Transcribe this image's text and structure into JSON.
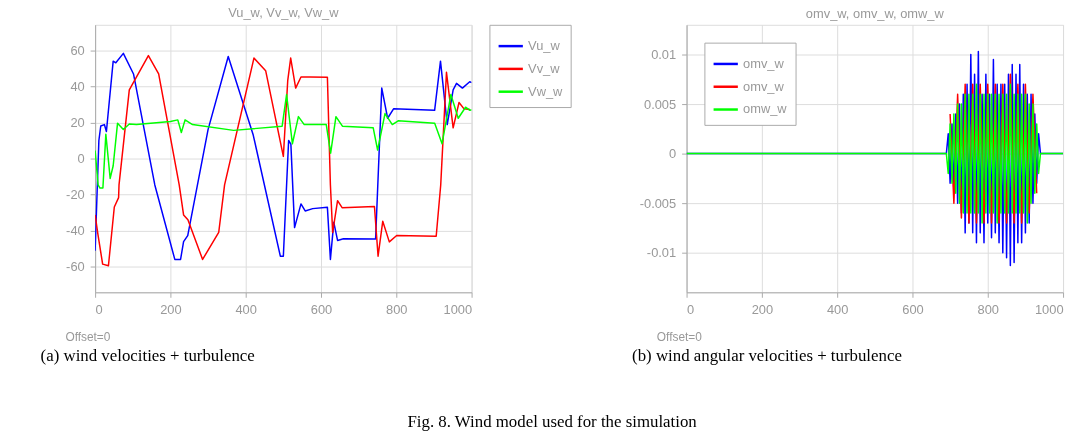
{
  "chart_data": [
    {
      "type": "line",
      "title": "Vu_w, Vv_w, Vw_w",
      "xlim": [
        0,
        1000
      ],
      "xticks": [
        0,
        200,
        400,
        600,
        800,
        1000
      ],
      "ylim": [
        -74,
        74
      ],
      "yticks": [
        -60,
        -40,
        -20,
        0,
        20,
        40,
        60
      ],
      "grid": true,
      "legend": "right",
      "series": [
        {
          "name": "Vu_w",
          "color": "#0000ff",
          "x": [
            0,
            10,
            15,
            24.6,
            30,
            48,
            55,
            75,
            102,
            158.6,
            211.7,
            227,
            235,
            246,
            300,
            353.6,
            420,
            492,
            500,
            514,
            520,
            529.8,
            546.8,
            558,
            578,
            617,
            625,
            634,
            644,
            659.6,
            745,
            761.4,
            777,
            792.7,
            901.8,
            917.4,
            935.3,
            951,
            960,
            975.6,
            995,
            1000
          ],
          "values": [
            -51,
            10,
            18,
            18.8,
            15,
            53.9,
            53,
            58.2,
            46.8,
            -14.6,
            -55.8,
            -55.8,
            -46,
            -42.6,
            16,
            56.5,
            13,
            -54,
            -54,
            10,
            8,
            -38.2,
            -25.1,
            -29,
            -27.7,
            -27,
            -55.8,
            -35.3,
            -45.3,
            -44.4,
            -44.5,
            39,
            22.3,
            27.5,
            26.7,
            53.9,
            18.8,
            38,
            41.6,
            39,
            42.5,
            42
          ]
        },
        {
          "name": "Vv_w",
          "color": "#ff0000",
          "x": [
            0,
            8,
            20,
            35.4,
            51,
            62.4,
            63.5,
            90.8,
            141.5,
            168.8,
            223.4,
            235,
            246.5,
            285.5,
            328.3,
            343.9,
            421.9,
            453,
            500,
            511.7,
            519.5,
            532.7,
            546.8,
            570,
            617,
            625,
            631,
            644,
            656,
            742,
            751.6,
            764,
            781.5,
            801,
            906,
            918,
            933.3,
            951,
            966.6,
            980,
            995.6
          ],
          "values": [
            -31.2,
            -42.6,
            -58.4,
            -59.3,
            -26.8,
            -21.6,
            -14.6,
            38,
            57,
            46.8,
            -14.6,
            -31.2,
            -33.9,
            -55.8,
            -40.9,
            -14.6,
            55.6,
            48.6,
            1.2,
            43.3,
            55.6,
            39,
            45.1,
            45.1,
            45,
            -14.6,
            -40.9,
            -23.3,
            -27.2,
            -26.5,
            -54,
            -34.7,
            -46.1,
            -42.6,
            -43,
            -14.6,
            47.7,
            17,
            31,
            27.5,
            27.2
          ]
        },
        {
          "name": "Vw_w",
          "color": "#00ff00",
          "x": [
            0,
            8,
            12.9,
            20.7,
            28.5,
            40,
            48,
            59.6,
            75,
            90.8,
            110,
            200,
            219.6,
            229,
            239,
            258.7,
            368,
            496.8,
            508.6,
            524,
            540,
            555.5,
            614,
            625.6,
            639.7,
            656.9,
            738.7,
            750.4,
            770,
            789.4,
            805,
            902,
            921.6,
            945,
            964.5,
            984,
            995.6,
            1000
          ],
          "values": [
            4.4,
            -14.6,
            -16.3,
            -16.3,
            13.5,
            -11,
            -4,
            19.6,
            16.1,
            19.1,
            18.8,
            20.5,
            21.4,
            14.4,
            21.4,
            18.8,
            15.6,
            17.9,
            35.4,
            8.2,
            23.2,
            18.8,
            18.8,
            3,
            23.2,
            17.9,
            17,
            4.7,
            24.9,
            18.8,
            20.9,
            19.6,
            8.2,
            35.4,
            22.3,
            28.4,
            26.7,
            27
          ]
        }
      ],
      "annotations": [
        "Offset=0",
        "(a) wind velocities + turbulence",
        "Fig. 8. Wind model used for the simulation"
      ]
    },
    {
      "type": "line",
      "title": "omv_w, omv_w, omw_w",
      "xlim": [
        0,
        1000
      ],
      "xticks": [
        0,
        200,
        400,
        600,
        800,
        1000
      ],
      "ylim": [
        -0.014,
        0.013
      ],
      "yticks": [
        -0.01,
        -0.005,
        0,
        0.005,
        0.01
      ],
      "grid": true,
      "legend": "top left",
      "series": [
        {
          "name": "omv_w",
          "color": "#0000ff",
          "x": [
            0,
            690,
            695,
            700,
            705,
            710,
            715,
            720,
            725,
            730,
            735,
            740,
            745,
            750,
            755,
            760,
            765,
            770,
            775,
            780,
            785,
            790,
            795,
            800,
            805,
            810,
            815,
            820,
            825,
            830,
            835,
            840,
            845,
            850,
            855,
            860,
            865,
            870,
            875,
            880,
            885,
            890,
            895,
            900,
            905,
            910,
            915,
            920,
            925,
            930,
            935,
            940,
            1000
          ],
          "values": [
            0,
            0,
            0.002,
            -0.003,
            0.003,
            -0.004,
            0.004,
            -0.005,
            0.005,
            -0.006,
            0.006,
            -0.008,
            0.007,
            -0.007,
            0.01,
            -0.008,
            0.008,
            -0.009,
            0.0103,
            -0.008,
            0.006,
            -0.009,
            0.008,
            -0.007,
            0.006,
            -0.0085,
            0.0095,
            -0.008,
            0.007,
            -0.009,
            0.007,
            -0.01,
            0.007,
            -0.0105,
            0.008,
            -0.0113,
            0.009,
            -0.011,
            0.008,
            -0.009,
            0.009,
            -0.009,
            0.007,
            -0.008,
            0.006,
            -0.007,
            0.006,
            -0.005,
            0.004,
            -0.003,
            0.002,
            0,
            0
          ]
        },
        {
          "name": "omv_w",
          "color": "#ff0000",
          "x": [
            700,
            710,
            720,
            730,
            740,
            750,
            760,
            770,
            780,
            790,
            800,
            810,
            820,
            830,
            840,
            850,
            860,
            870,
            880,
            890,
            900,
            910,
            920,
            930
          ],
          "values": [
            0.004,
            -0.005,
            0.006,
            -0.0065,
            0.007,
            -0.007,
            0.007,
            -0.007,
            0.007,
            -0.007,
            0.007,
            -0.007,
            0.007,
            -0.007,
            0.007,
            -0.007,
            0.008,
            -0.007,
            0.007,
            -0.007,
            0.007,
            -0.006,
            0.006,
            -0.004
          ]
        },
        {
          "name": "omw_w",
          "color": "#00ff00",
          "x": [
            0,
            690,
            695,
            700,
            705,
            710,
            715,
            720,
            725,
            730,
            735,
            740,
            745,
            750,
            755,
            760,
            765,
            770,
            775,
            780,
            785,
            790,
            795,
            800,
            805,
            810,
            815,
            820,
            825,
            830,
            835,
            840,
            845,
            850,
            855,
            860,
            865,
            870,
            875,
            880,
            885,
            890,
            895,
            900,
            905,
            910,
            915,
            920,
            925,
            930,
            935,
            940,
            1000
          ],
          "values": [
            0,
            0,
            -0.002,
            0.003,
            -0.003,
            0.004,
            -0.004,
            0.005,
            -0.005,
            0.005,
            -0.006,
            0.006,
            -0.006,
            0.006,
            -0.006,
            0.006,
            -0.006,
            0.007,
            -0.006,
            0.006,
            -0.007,
            0.006,
            -0.006,
            0.006,
            -0.006,
            0.006,
            -0.006,
            0.006,
            -0.007,
            0.006,
            -0.006,
            0.006,
            -0.006,
            0.006,
            -0.006,
            0.007,
            -0.006,
            0.006,
            -0.006,
            0.006,
            -0.006,
            0.006,
            -0.006,
            0.006,
            -0.007,
            0.005,
            -0.005,
            0.005,
            -0.004,
            0.003,
            -0.002,
            0,
            0
          ]
        }
      ],
      "annotations": [
        "Offset=0",
        "(b) wind angular velocities + turbulence"
      ]
    }
  ]
}
